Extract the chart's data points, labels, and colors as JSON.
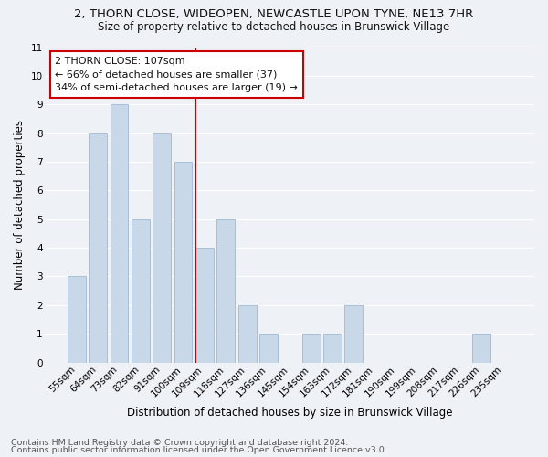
{
  "title": "2, THORN CLOSE, WIDEOPEN, NEWCASTLE UPON TYNE, NE13 7HR",
  "subtitle": "Size of property relative to detached houses in Brunswick Village",
  "xlabel": "Distribution of detached houses by size in Brunswick Village",
  "ylabel": "Number of detached properties",
  "footnote1": "Contains HM Land Registry data © Crown copyright and database right 2024.",
  "footnote2": "Contains public sector information licensed under the Open Government Licence v3.0.",
  "categories": [
    "55sqm",
    "64sqm",
    "73sqm",
    "82sqm",
    "91sqm",
    "100sqm",
    "109sqm",
    "118sqm",
    "127sqm",
    "136sqm",
    "145sqm",
    "154sqm",
    "163sqm",
    "172sqm",
    "181sqm",
    "190sqm",
    "199sqm",
    "208sqm",
    "217sqm",
    "226sqm",
    "235sqm"
  ],
  "values": [
    3,
    8,
    9,
    5,
    8,
    7,
    4,
    5,
    2,
    1,
    0,
    1,
    1,
    2,
    0,
    0,
    0,
    0,
    0,
    1,
    0
  ],
  "bar_color": "#c8d8e8",
  "bar_edge_color": "#a0b8d0",
  "vline_index": 6,
  "vline_color": "#cc0000",
  "annotation_title": "2 THORN CLOSE: 107sqm",
  "annotation_line1": "← 66% of detached houses are smaller (37)",
  "annotation_line2": "34% of semi-detached houses are larger (19) →",
  "annotation_box_color": "#cc0000",
  "ylim": [
    0,
    11
  ],
  "yticks": [
    0,
    1,
    2,
    3,
    4,
    5,
    6,
    7,
    8,
    9,
    10,
    11
  ],
  "background_color": "#eef2f7",
  "grid_color": "#ffffff",
  "title_fontsize": 9.5,
  "subtitle_fontsize": 8.5,
  "xlabel_fontsize": 8.5,
  "ylabel_fontsize": 8.5,
  "tick_fontsize": 7.5,
  "annotation_fontsize": 8,
  "footnote_fontsize": 6.8
}
